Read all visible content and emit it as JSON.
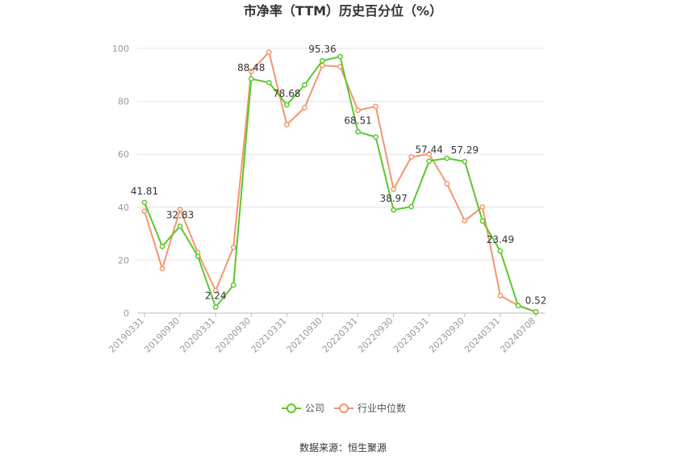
{
  "chart_data": {
    "type": "line",
    "title": "市净率（TTM）历史百分位（%）",
    "source": "数据来源：恒生聚源",
    "ylim": [
      0,
      100
    ],
    "y_ticks": [
      "0",
      "20",
      "40",
      "60",
      "80",
      "100"
    ],
    "x_tick_labels": [
      "20190331",
      "20190930",
      "20200331",
      "20200930",
      "20210331",
      "20210930",
      "20220331",
      "20220930",
      "20230331",
      "20230930",
      "20240331",
      "20240708"
    ],
    "grid": "horizontal",
    "legend_position": "bottom",
    "series": [
      {
        "name": "公司",
        "color": "#5cc72d",
        "values": [
          41.81,
          25.2,
          32.83,
          21.5,
          2.24,
          10.6,
          88.48,
          87.1,
          78.68,
          86.2,
          95.36,
          96.9,
          68.51,
          66.5,
          38.97,
          40.2,
          57.44,
          58.5,
          57.29,
          34.8,
          23.49,
          2.8,
          0.52
        ]
      },
      {
        "name": "行业中位数",
        "color": "#f4966c",
        "values": [
          38.5,
          16.8,
          39.2,
          22.8,
          8.5,
          24.8,
          91.3,
          98.6,
          71.2,
          77.6,
          93.6,
          93.1,
          76.6,
          78.1,
          46.8,
          59.0,
          60.1,
          48.9,
          34.9,
          40.1,
          6.6,
          2.9,
          0.4
        ]
      }
    ],
    "data_labels": [
      {
        "series": 0,
        "index": 0,
        "text": "41.81"
      },
      {
        "series": 0,
        "index": 2,
        "text": "32.83"
      },
      {
        "series": 0,
        "index": 4,
        "text": "2.24"
      },
      {
        "series": 0,
        "index": 6,
        "text": "88.48"
      },
      {
        "series": 0,
        "index": 8,
        "text": "78.68"
      },
      {
        "series": 0,
        "index": 10,
        "text": "95.36"
      },
      {
        "series": 0,
        "index": 12,
        "text": "68.51"
      },
      {
        "series": 0,
        "index": 14,
        "text": "38.97"
      },
      {
        "series": 0,
        "index": 16,
        "text": "57.44"
      },
      {
        "series": 0,
        "index": 18,
        "text": "57.29"
      },
      {
        "series": 0,
        "index": 20,
        "text": "23.49"
      },
      {
        "series": 0,
        "index": 22,
        "text": "0.52"
      }
    ]
  }
}
